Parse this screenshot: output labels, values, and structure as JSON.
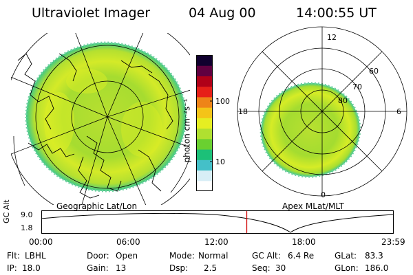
{
  "header": {
    "title": "Ultraviolet Imager",
    "date": "04 Aug 00",
    "time": "14:00:55 UT"
  },
  "left_panel": {
    "label": "Geographic Lat/Lon"
  },
  "right_panel": {
    "label": "Apex MLat/MLT",
    "mlt_labels": [
      "12",
      "18",
      "6",
      "0"
    ],
    "mlat_labels": [
      "60",
      "70",
      "80"
    ]
  },
  "colorbar": {
    "unit_label": "photon cm⁻²s⁻¹",
    "tick_labels": [
      "100",
      "10"
    ],
    "scale": "log",
    "colors": [
      "#ffffff",
      "#d8eef6",
      "#44c0c8",
      "#1cc078",
      "#6ad030",
      "#b0e030",
      "#e6ee22",
      "#f4c418",
      "#ee8418",
      "#e62018",
      "#b00018",
      "#600040",
      "#10002e"
    ]
  },
  "altitude_plot": {
    "ylabel": "GC Alt",
    "y_ticks": [
      "9.0",
      "1.8"
    ],
    "x_ticks": [
      "00:00",
      "06:00",
      "12:00",
      "18:00",
      "23:59"
    ],
    "current_time_fraction": 0.583
  },
  "info": {
    "flt_label": "Flt:",
    "flt_value": "LBHL",
    "ip_label": "IP:",
    "ip_value": "18.0",
    "door_label": "Door:",
    "door_value": "Open",
    "gain_label": "Gain:",
    "gain_value": "13",
    "mode_label": "Mode:",
    "mode_value": "Normal",
    "dsp_label": "Dsp:",
    "dsp_value": "2.5",
    "gcalt_label": "GC Alt:",
    "gcalt_value": "6.4 Re",
    "seq_label": "Seq:",
    "seq_value": "30",
    "glat_label": "GLat:",
    "glat_value": "83.3",
    "glon_label": "GLon:",
    "glon_value": "186.0"
  }
}
